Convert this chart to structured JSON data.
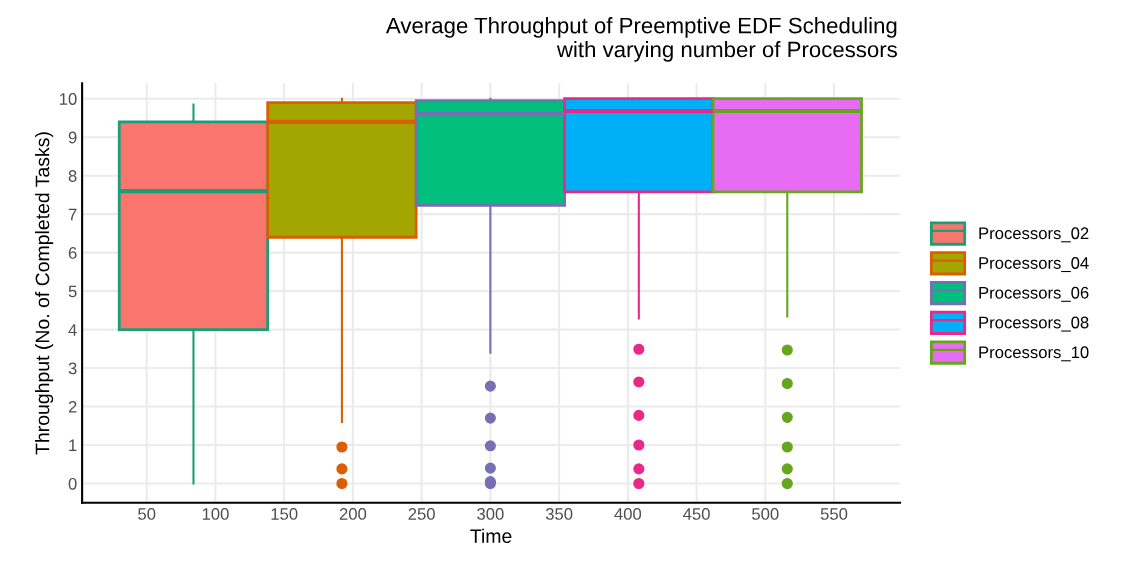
{
  "chart_data": {
    "type": "box",
    "title": "Average Throughput of Preemptive EDF Scheduling\nwith varying number of Processors",
    "xlabel": "Time",
    "ylabel": "Throughput (No. of Completed Tasks)",
    "xlim": [
      3,
      598
    ],
    "xticks": [
      50,
      100,
      150,
      200,
      250,
      300,
      350,
      400,
      450,
      500,
      550
    ],
    "ylim": [
      -0.5,
      10.4
    ],
    "yticks": [
      0,
      1,
      2,
      3,
      4,
      5,
      6,
      7,
      8,
      9,
      10
    ],
    "grid": true,
    "legend": "right",
    "series": [
      {
        "name": "Processors_02",
        "color": "#1b9e77",
        "colors": [
          "#f8766d"
        ],
        "x": [
          84
        ],
        "boxes": [
          {
            "low": 0,
            "q1": 4.0,
            "median": 7.6,
            "q3": 9.4,
            "high": 9.85
          }
        ]
      },
      {
        "name": "Processors_04",
        "color": "#d95f02",
        "colors": [
          "#a3a500"
        ],
        "x": [
          192
        ],
        "boxes": [
          {
            "low": 1.6,
            "q1": 6.4,
            "median": 9.4,
            "q3": 9.9,
            "high": 10,
            "outliers": [
              0.95,
              0.38,
              0
            ]
          }
        ]
      },
      {
        "name": "Processors_06",
        "color": "#7570b3",
        "colors": [
          "#00bf7d"
        ],
        "x": [
          300
        ],
        "boxes": [
          {
            "low": 3.4,
            "q1": 7.23,
            "median": 9.6,
            "q3": 9.95,
            "high": 10,
            "outliers": [
              2.53,
              1.7,
              0.98,
              0.4,
              0.05,
              0
            ]
          }
        ]
      },
      {
        "name": "Processors_08",
        "color": "#e7298a",
        "colors": [
          "#00b0f6"
        ],
        "x": [
          408
        ],
        "boxes": [
          {
            "low": 4.29,
            "q1": 7.58,
            "median": 9.68,
            "q3": 10,
            "high": 10,
            "outliers": [
              3.49,
              2.64,
              1.77,
              1.0,
              0.38,
              0
            ]
          }
        ]
      },
      {
        "name": "Processors_10",
        "color": "#66a61e",
        "colors": [
          "#e76bf3"
        ],
        "x": [
          516
        ],
        "boxes": [
          {
            "low": 4.34,
            "q1": 7.58,
            "median": 9.68,
            "q3": 10,
            "high": 10,
            "outliers": [
              3.47,
              2.6,
              1.72,
              0.95,
              0.38,
              0
            ]
          }
        ]
      }
    ]
  }
}
